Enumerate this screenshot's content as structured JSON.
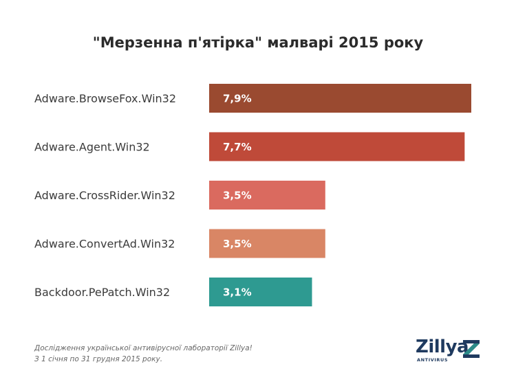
{
  "chart_data": {
    "type": "bar",
    "orientation": "horizontal",
    "title": "\"Мерзенна п'ятірка\" малварі 2015 року",
    "categories": [
      "Adware.BrowseFox.Win32",
      "Adware.Agent.Win32",
      "Adware.CrossRider.Win32",
      "Adware.ConvertAd.Win32",
      "Backdoor.PePatch.Win32"
    ],
    "values": [
      7.9,
      7.7,
      3.5,
      3.5,
      3.1
    ],
    "value_labels": [
      "7,9%",
      "7,7%",
      "3,5%",
      "3,5%",
      "3,1%"
    ],
    "colors": [
      "#9a4a30",
      "#bf4a39",
      "#da6a5f",
      "#d98665",
      "#2e9a91"
    ],
    "xlim": [
      0,
      7.9
    ],
    "grid": false
  },
  "footer": {
    "line1": "Дослідження української антивірусної лабораторії Zillya!",
    "line2": "З 1 січня по 31 грудня 2015 року."
  },
  "logo": {
    "text": "Zillya",
    "subtext": "ANTIVIRUS",
    "color": "#1f3a5f",
    "accent": "#2e9a91"
  }
}
